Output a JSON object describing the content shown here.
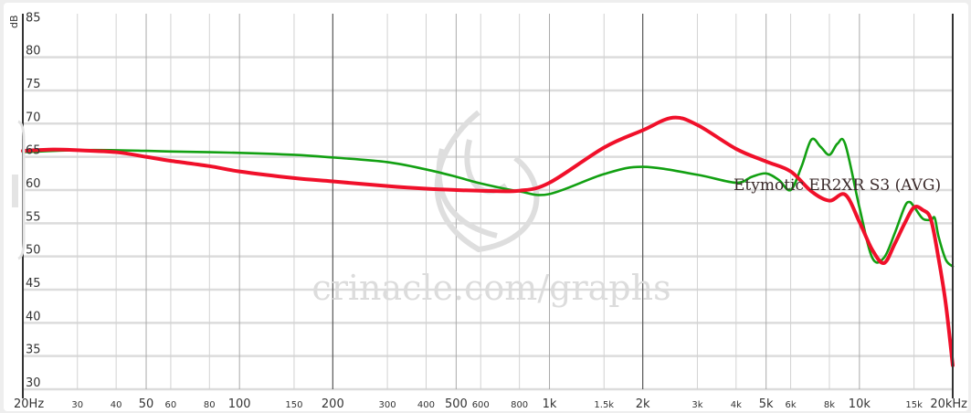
{
  "chart_data": {
    "type": "line",
    "xscale": "log",
    "xlim": [
      20,
      20000
    ],
    "ylim": [
      30,
      85
    ],
    "ylabel": "dB",
    "yticks": [
      "85",
      "80",
      "75",
      "70",
      "65",
      "60",
      "55",
      "50",
      "45",
      "40",
      "35",
      "30"
    ],
    "xticks": [
      {
        "f": 20,
        "label": "20Hz",
        "major": true
      },
      {
        "f": 30,
        "label": "30",
        "major": false
      },
      {
        "f": 40,
        "label": "40",
        "major": false
      },
      {
        "f": 50,
        "label": "50",
        "major": true
      },
      {
        "f": 60,
        "label": "60",
        "major": false
      },
      {
        "f": 80,
        "label": "80",
        "major": false
      },
      {
        "f": 100,
        "label": "100",
        "major": true
      },
      {
        "f": 150,
        "label": "150",
        "major": false
      },
      {
        "f": 200,
        "label": "200",
        "major": true
      },
      {
        "f": 300,
        "label": "300",
        "major": false
      },
      {
        "f": 400,
        "label": "400",
        "major": false
      },
      {
        "f": 500,
        "label": "500",
        "major": true
      },
      {
        "f": 600,
        "label": "600",
        "major": false
      },
      {
        "f": 800,
        "label": "800",
        "major": false
      },
      {
        "f": 1000,
        "label": "1k",
        "major": true
      },
      {
        "f": 1500,
        "label": "1.5k",
        "major": false
      },
      {
        "f": 2000,
        "label": "2k",
        "major": true
      },
      {
        "f": 3000,
        "label": "3k",
        "major": false
      },
      {
        "f": 4000,
        "label": "4k",
        "major": false
      },
      {
        "f": 5000,
        "label": "5k",
        "major": true
      },
      {
        "f": 6000,
        "label": "6k",
        "major": false
      },
      {
        "f": 8000,
        "label": "8k",
        "major": false
      },
      {
        "f": 10000,
        "label": "10k",
        "major": true
      },
      {
        "f": 15000,
        "label": "15k",
        "major": false
      },
      {
        "f": 20000,
        "label": "20kHz",
        "major": true
      }
    ],
    "grid": true,
    "watermark": "crinacle.com/graphs",
    "series_label": "Etymotic ER2XR S3 (AVG)",
    "series": [
      {
        "color": "#12a012",
        "x": [
          20,
          30,
          40,
          50,
          60,
          100,
          150,
          200,
          300,
          400,
          500,
          600,
          800,
          1000,
          1500,
          2000,
          3000,
          4000,
          4500,
          5000,
          5500,
          6000,
          6500,
          7000,
          7500,
          8000,
          8500,
          9000,
          10000,
          11000,
          12000,
          13000,
          14000,
          14500,
          15000,
          16000,
          17000,
          17500,
          18000,
          19000,
          20000
        ],
        "y": [
          65.7,
          66,
          66,
          65.9,
          65.8,
          65.6,
          65.3,
          64.9,
          64.2,
          63.1,
          62,
          61,
          59.8,
          59.4,
          62.4,
          63.5,
          62.3,
          61.1,
          62,
          62.5,
          61.5,
          60,
          63.5,
          67.6,
          66.5,
          65.3,
          67,
          66.9,
          57.4,
          49.8,
          49.8,
          53.5,
          57.5,
          58.2,
          57.5,
          55.7,
          55.5,
          55.8,
          53,
          49.5,
          48.5
        ]
      },
      {
        "name": "Etymotic ER2XR S3 (AVG)",
        "color": "#f0102a",
        "x": [
          20,
          25,
          30,
          40,
          50,
          60,
          80,
          100,
          150,
          200,
          300,
          400,
          500,
          600,
          800,
          1000,
          1500,
          2000,
          2500,
          3000,
          4000,
          5000,
          6000,
          7000,
          8000,
          9000,
          10000,
          11000,
          12000,
          13000,
          14000,
          15000,
          16000,
          17000,
          18000,
          19000,
          20000
        ],
        "y": [
          65.9,
          66.1,
          66,
          65.7,
          65,
          64.4,
          63.6,
          62.8,
          61.8,
          61.3,
          60.6,
          60.2,
          60,
          59.9,
          59.9,
          61.1,
          66.4,
          69,
          70.9,
          69.8,
          66.2,
          64.3,
          62.8,
          59.8,
          58.4,
          59.3,
          55.2,
          51,
          49,
          51.9,
          55,
          57.4,
          57,
          55.6,
          49.7,
          42.8,
          33.6
        ]
      }
    ]
  }
}
